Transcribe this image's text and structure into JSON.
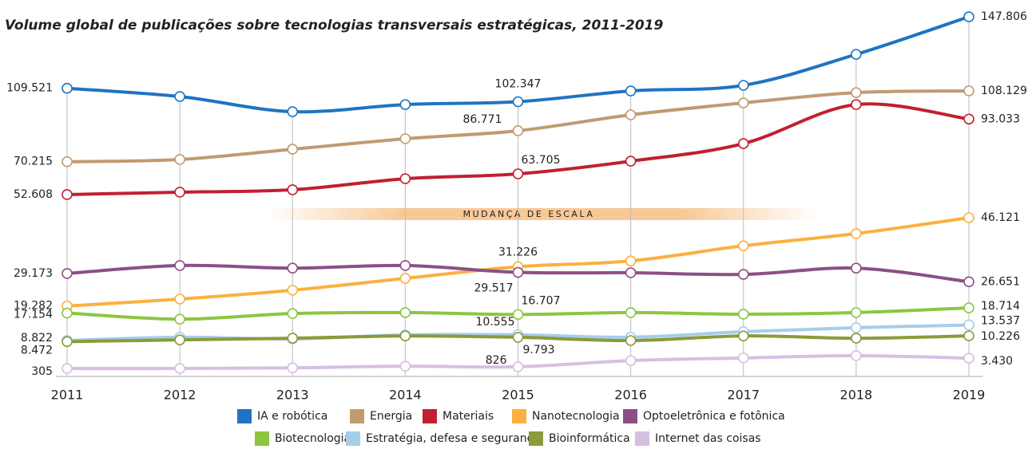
{
  "chart_data": {
    "type": "line",
    "title": "Volume global de publicações sobre tecnologias transversais estratégicas, 2011-2019",
    "scale_break_label": "MUDANÇA DE ESCALA",
    "categories": [
      "2011",
      "2012",
      "2013",
      "2014",
      "2015",
      "2016",
      "2017",
      "2018",
      "2019"
    ],
    "ylim": [
      45000,
      150000
    ],
    "y2lim": [
      0,
      50000
    ],
    "series": [
      {
        "name": "IA e robótica",
        "color": "#1f74c2",
        "values": [
          109521,
          105100,
          97000,
          100800,
          102347,
          108100,
          111100,
          127700,
          147806
        ],
        "value_labels": [
          "109.521",
          null,
          null,
          null,
          "102.347",
          null,
          null,
          null,
          "147.806"
        ]
      },
      {
        "name": "Energia",
        "color": "#c19a72",
        "values": [
          70215,
          71400,
          76900,
          82500,
          86771,
          95300,
          101700,
          107200,
          108129
        ],
        "value_labels": [
          "70.215",
          null,
          null,
          null,
          "86.771",
          null,
          null,
          null,
          "108.129"
        ]
      },
      {
        "name": "Materiais",
        "color": "#c1202f",
        "values": [
          52608,
          53900,
          55200,
          61100,
          63705,
          70500,
          79900,
          100800,
          93033
        ],
        "value_labels": [
          "52.608",
          null,
          null,
          null,
          "63.705",
          null,
          null,
          null,
          "93.033"
        ]
      },
      {
        "name": "Nanotecnologia",
        "color": "#fbb040",
        "axis": "y2",
        "values": [
          19282,
          21400,
          24100,
          27700,
          31226,
          33000,
          37600,
          41300,
          46121
        ],
        "value_labels": [
          "19.282",
          null,
          null,
          null,
          "31.226",
          null,
          null,
          null,
          "46.121"
        ]
      },
      {
        "name": "Optoeletrônica e fotônica",
        "color": "#8b4f86",
        "axis": "y2",
        "values": [
          29173,
          31600,
          30800,
          31600,
          29517,
          29400,
          28900,
          30800,
          26651
        ],
        "value_labels": [
          "29.173",
          null,
          null,
          null,
          "29.517",
          null,
          null,
          null,
          "26.651"
        ]
      },
      {
        "name": "Biotecnologia",
        "color": "#8cc63f",
        "axis": "y2",
        "values": [
          17154,
          15300,
          17000,
          17300,
          16707,
          17300,
          16800,
          17300,
          18714
        ],
        "value_labels": [
          "17.154",
          null,
          null,
          null,
          "16.707",
          null,
          null,
          null,
          "18.714"
        ]
      },
      {
        "name": "Estratégia, defesa e segurança",
        "color": "#a6cdea",
        "axis": "y2",
        "values": [
          8822,
          9800,
          9300,
          10500,
          10555,
          9800,
          11500,
          12700,
          13537
        ],
        "value_labels": [
          "8.822",
          null,
          null,
          null,
          "10.555",
          null,
          null,
          null,
          "13.537"
        ]
      },
      {
        "name": "Bioinformática",
        "color": "#8c9a3a",
        "axis": "y2",
        "values": [
          8472,
          9000,
          9500,
          10200,
          9793,
          8800,
          10200,
          9500,
          10226
        ],
        "value_labels": [
          "8.472",
          null,
          null,
          null,
          "9.793",
          null,
          null,
          null,
          "10.226"
        ]
      },
      {
        "name": "Internet das coisas",
        "color": "#d6bfe0",
        "axis": "y2",
        "values": [
          305,
          305,
          500,
          1000,
          826,
          2700,
          3500,
          4200,
          3430
        ],
        "value_labels": [
          "305",
          null,
          null,
          null,
          "826",
          null,
          null,
          null,
          "3.430"
        ]
      }
    ]
  }
}
